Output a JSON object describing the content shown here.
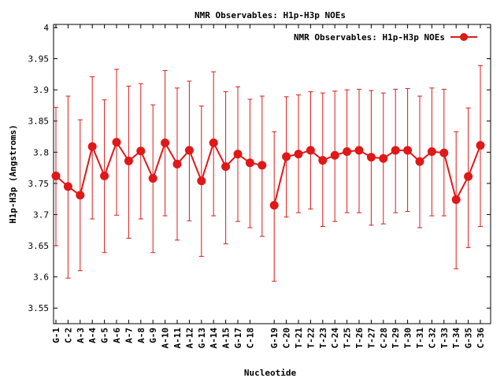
{
  "chart_data": {
    "type": "line",
    "title": "NMR Observables: H1p-H3p NOEs",
    "xlabel": "Nucleotide",
    "ylabel": "H1p-H3p (Angstroms)",
    "ylim": [
      3.525,
      4.005
    ],
    "yticks": [
      "3.55",
      "3.6",
      "3.65",
      "3.7",
      "3.75",
      "3.8",
      "3.85",
      "3.9",
      "3.95",
      "4"
    ],
    "grid": false,
    "legend_position": "top-right",
    "color": "#e01818",
    "categories": [
      "G-1",
      "C-2",
      "A-3",
      "A-4",
      "G-5",
      "A-6",
      "A-7",
      "A-8",
      "G-9",
      "A-10",
      "A-11",
      "A-12",
      "G-13",
      "A-14",
      "A-15",
      "G-17",
      "C-18",
      "",
      "G-19",
      "C-20",
      "T-21",
      "T-22",
      "T-23",
      "C-24",
      "T-25",
      "T-26",
      "T-27",
      "C-28",
      "T-29",
      "T-30",
      "T-31",
      "C-32",
      "T-33",
      "T-34",
      "G-35",
      "C-36"
    ],
    "series": [
      {
        "name": "NMR Observables: H1p-H3p NOEs",
        "segments": [
          {
            "start": 0,
            "values": [
              3.762,
              3.745,
              3.731,
              3.809,
              3.762,
              3.816,
              3.786,
              3.802,
              3.758,
              3.815,
              3.781,
              3.803,
              3.754,
              3.815,
              3.777,
              3.797,
              3.783,
              3.779
            ],
            "err_low": [
              3.65,
              3.598,
              3.61,
              3.693,
              3.639,
              3.699,
              3.662,
              3.693,
              3.639,
              3.698,
              3.659,
              3.69,
              3.633,
              3.698,
              3.653,
              3.689,
              3.679,
              3.665
            ],
            "err_high": [
              3.872,
              3.89,
              3.852,
              3.921,
              3.884,
              3.933,
              3.906,
              3.91,
              3.876,
              3.931,
              3.903,
              3.914,
              3.874,
              3.929,
              3.897,
              3.905,
              3.885,
              3.89
            ]
          },
          {
            "start": 18,
            "values": [
              3.715,
              3.793,
              3.797,
              3.803,
              3.787,
              3.795,
              3.801,
              3.803,
              3.792,
              3.79,
              3.803,
              3.803,
              3.785,
              3.801,
              3.799,
              3.724,
              3.761,
              3.811
            ],
            "err_low": [
              3.593,
              3.696,
              3.703,
              3.709,
              3.681,
              3.689,
              3.703,
              3.703,
              3.683,
              3.685,
              3.703,
              3.705,
              3.679,
              3.698,
              3.698,
              3.613,
              3.647,
              3.681
            ],
            "err_high": [
              3.833,
              3.889,
              3.892,
              3.897,
              3.895,
              3.898,
              3.9,
              3.901,
              3.899,
              3.895,
              3.901,
              3.902,
              3.89,
              3.903,
              3.901,
              3.833,
              3.871,
              3.939
            ]
          }
        ]
      }
    ]
  }
}
